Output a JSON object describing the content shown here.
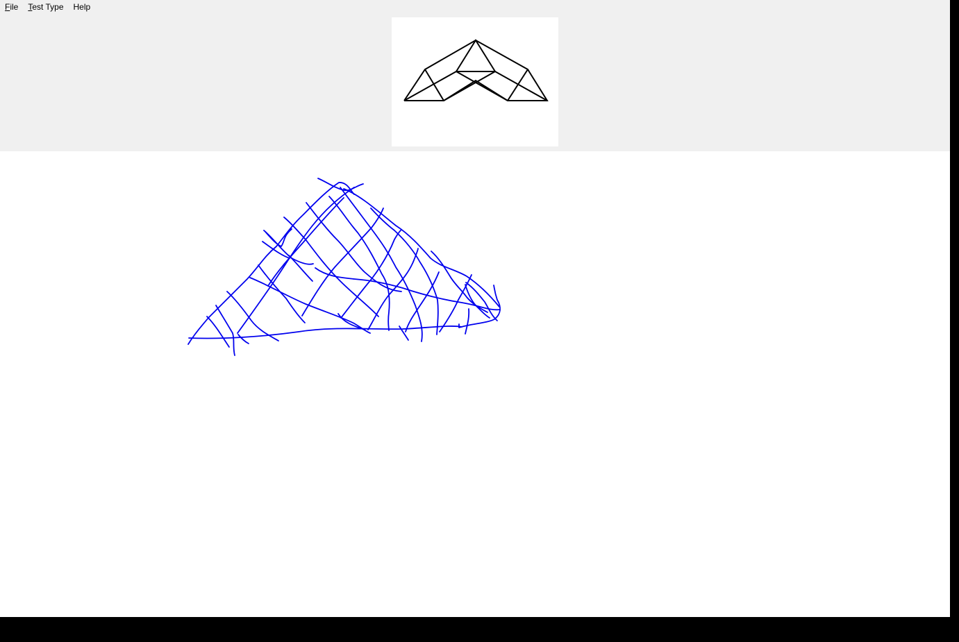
{
  "menu": {
    "items": [
      {
        "mnemonic": "F",
        "rest": "ile"
      },
      {
        "mnemonic": "T",
        "rest": "est Type"
      },
      {
        "mnemonic": "",
        "rest": "Help"
      }
    ]
  },
  "reference_figure": {
    "stroke_color": "#000000",
    "description_icon": "geometric-reference-figure"
  },
  "drawing": {
    "stroke_color": "#0000ee"
  }
}
